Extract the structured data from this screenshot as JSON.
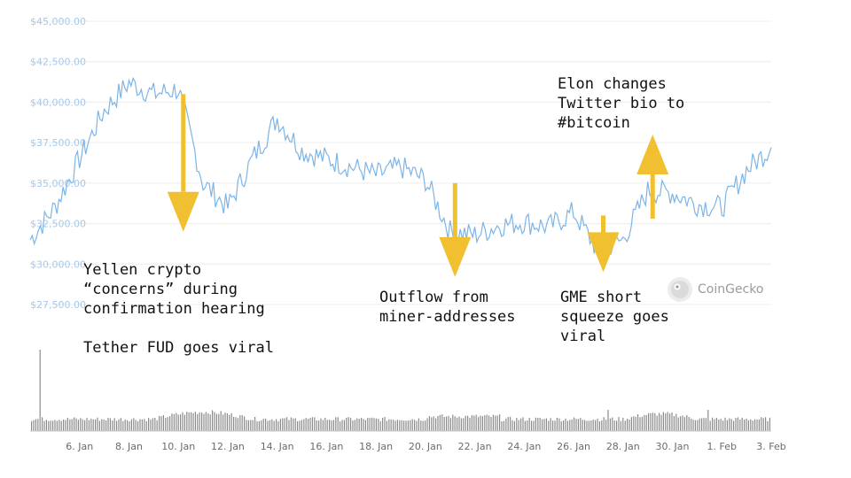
{
  "chart_data": {
    "type": "line",
    "y_axis": {
      "ticks": [
        "$45,000.00",
        "$42,500.00",
        "$40,000.00",
        "$37,500.00",
        "$35,000.00",
        "$32,500.00",
        "$30,000.00",
        "$27,500.00"
      ],
      "range": [
        27500,
        45000
      ]
    },
    "x_axis": {
      "ticks": [
        "6. Jan",
        "8. Jan",
        "10. Jan",
        "12. Jan",
        "14. Jan",
        "16. Jan",
        "18. Jan",
        "20. Jan",
        "22. Jan",
        "24. Jan",
        "26. Jan",
        "28. Jan",
        "30. Jan",
        "1. Feb",
        "3. Feb"
      ],
      "start": "4. Jan",
      "end": "3. Feb"
    },
    "series": [
      {
        "line_color": "#7db4e6",
        "x": [
          "4. Jan",
          "5. Jan",
          "6. Jan",
          "7. Jan",
          "8. Jan",
          "9. Jan",
          "10. Jan",
          "11. Jan",
          "12. Jan",
          "13. Jan",
          "14. Jan",
          "15. Jan",
          "16. Jan",
          "17. Jan",
          "18. Jan",
          "19. Jan",
          "20. Jan",
          "21. Jan",
          "22. Jan",
          "23. Jan",
          "24. Jan",
          "25. Jan",
          "26. Jan",
          "27. Jan",
          "28. Jan",
          "29. Jan",
          "30. Jan",
          "31. Jan",
          "1. Feb",
          "2. Feb",
          "3. Feb"
        ],
        "values": [
          31500,
          33500,
          36500,
          39500,
          41200,
          40500,
          40800,
          35000,
          33500,
          36500,
          39000,
          37000,
          36500,
          36000,
          35500,
          36000,
          35200,
          32000,
          31800,
          32400,
          32600,
          32300,
          33200,
          30800,
          31500,
          34500,
          34400,
          33700,
          33500,
          35800,
          37200
        ]
      }
    ],
    "volume": {
      "bar_color": "#8a8a8a",
      "spike_dates": [
        "4. Jan",
        "27. Jan",
        "31. Jan"
      ]
    },
    "grid": true,
    "annotations": [
      {
        "text": "Yellen crypto\n“concerns” during\nconfirmation hearing\n\nTether FUD goes viral",
        "arrow": "down",
        "arrow_from": 40500,
        "arrow_to": 32000,
        "date": "10. Jan"
      },
      {
        "text": "Outflow from\nminer-addresses",
        "arrow": "down",
        "arrow_from": 35000,
        "arrow_to": 29200,
        "date": "21. Jan"
      },
      {
        "text": "GME short\nsqueeze goes\nviral",
        "arrow": "down",
        "arrow_from": 33000,
        "arrow_to": 29500,
        "date": "27. Jan"
      },
      {
        "text": "Elon changes\nTwitter bio to\n#bitcoin",
        "arrow": "up",
        "arrow_from": 32800,
        "arrow_to": 38000,
        "date": "29. Jan"
      }
    ],
    "arrow_color": "#f0c030"
  },
  "watermark": {
    "text": "CoinGecko"
  }
}
